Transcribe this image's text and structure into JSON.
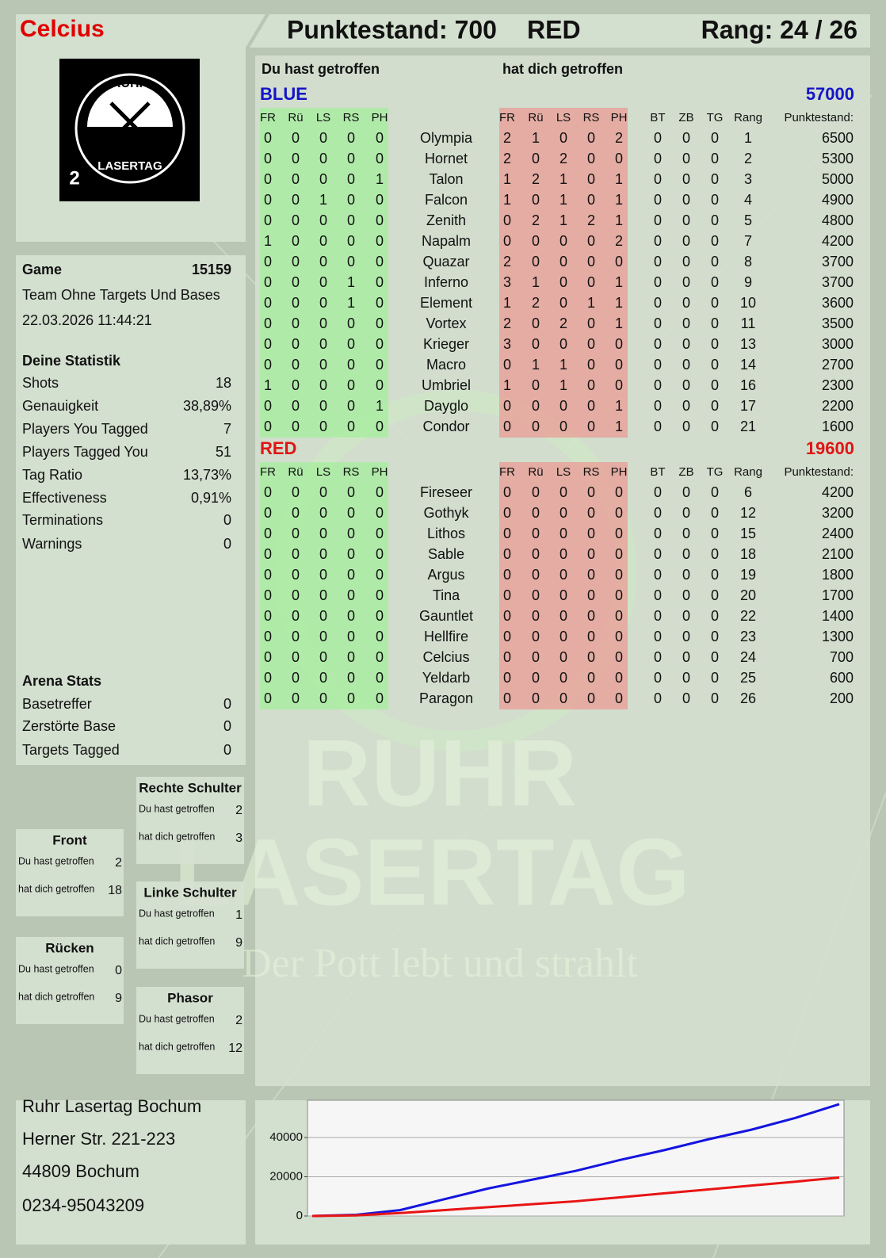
{
  "header": {
    "player": "Celcius",
    "score": "Punktestand: 700",
    "team": "RED",
    "rank": "Rang: 24 / 26"
  },
  "logo": {
    "top": "RUHR",
    "bottom": "LASERTAG",
    "badge": "2"
  },
  "game": {
    "label": "Game",
    "id": "15159",
    "mode": "Team Ohne Targets Und Bases",
    "datetime": "22.03.2026 11:44:21"
  },
  "stats": {
    "title": "Deine Statistik",
    "rows": [
      [
        "Shots",
        "18"
      ],
      [
        "Genauigkeit",
        "38,89%"
      ],
      [
        "Players You Tagged",
        "7"
      ],
      [
        "Players Tagged You",
        "51"
      ],
      [
        "Tag Ratio",
        "13,73%"
      ],
      [
        "Effectiveness",
        "0,91%"
      ],
      [
        "Terminations",
        "0"
      ],
      [
        "Warnings",
        "0"
      ]
    ]
  },
  "arena": {
    "title": "Arena Stats",
    "rows": [
      [
        "Basetreffer",
        "0"
      ],
      [
        "Zerstörte Base",
        "0"
      ],
      [
        "Targets Tagged",
        "0"
      ]
    ]
  },
  "zones": [
    {
      "name": "Rechte Schulter",
      "rows": [
        [
          "Du hast getroffen",
          "2"
        ],
        [
          "hat dich getroffen",
          "3"
        ]
      ]
    },
    {
      "name": "Front",
      "rows": [
        [
          "Du hast getroffen",
          "2"
        ],
        [
          "hat dich getroffen",
          "18"
        ]
      ]
    },
    {
      "name": "Linke Schulter",
      "rows": [
        [
          "Du hast getroffen",
          "1"
        ],
        [
          "hat dich getroffen",
          "9"
        ]
      ]
    },
    {
      "name": "Rücken",
      "rows": [
        [
          "Du hast getroffen",
          "0"
        ],
        [
          "hat dich getroffen",
          "9"
        ]
      ]
    },
    {
      "name": "Phasor",
      "rows": [
        [
          "Du hast getroffen",
          "2"
        ],
        [
          "hat dich getroffen",
          "12"
        ]
      ]
    }
  ],
  "address": [
    "Ruhr Lasertag Bochum",
    "Herner Str. 221-223",
    "44809 Bochum",
    "0234-95043209"
  ],
  "watermark": {
    "line1": "RUHR",
    "line2": "LASERTAG",
    "slogan": "Der Pott lebt und strahlt"
  },
  "table": {
    "hit_label": "Du hast getroffen",
    "got_label": "hat dich getroffen",
    "teams": [
      {
        "name": "BLUE",
        "color": "#1414c8",
        "score": "57000",
        "columns": [
          "FR",
          "Rü",
          "LS",
          "RS",
          "PH",
          "FR",
          "Rü",
          "LS",
          "RS",
          "PH",
          "BT",
          "ZB",
          "TG",
          "Rang",
          "Punktestand:"
        ],
        "rows": [
          [
            0,
            0,
            0,
            0,
            0,
            "Olympia",
            2,
            1,
            0,
            0,
            2,
            0,
            0,
            0,
            1,
            6500
          ],
          [
            0,
            0,
            0,
            0,
            0,
            "Hornet",
            2,
            0,
            2,
            0,
            0,
            0,
            0,
            0,
            2,
            5300
          ],
          [
            0,
            0,
            0,
            0,
            1,
            "Talon",
            1,
            2,
            1,
            0,
            1,
            0,
            0,
            0,
            3,
            5000
          ],
          [
            0,
            0,
            1,
            0,
            0,
            "Falcon",
            1,
            0,
            1,
            0,
            1,
            0,
            0,
            0,
            4,
            4900
          ],
          [
            0,
            0,
            0,
            0,
            0,
            "Zenith",
            0,
            2,
            1,
            2,
            1,
            0,
            0,
            0,
            5,
            4800
          ],
          [
            1,
            0,
            0,
            0,
            0,
            "Napalm",
            0,
            0,
            0,
            0,
            2,
            0,
            0,
            0,
            7,
            4200
          ],
          [
            0,
            0,
            0,
            0,
            0,
            "Quazar",
            2,
            0,
            0,
            0,
            0,
            0,
            0,
            0,
            8,
            3700
          ],
          [
            0,
            0,
            0,
            1,
            0,
            "Inferno",
            3,
            1,
            0,
            0,
            1,
            0,
            0,
            0,
            9,
            3700
          ],
          [
            0,
            0,
            0,
            1,
            0,
            "Element",
            1,
            2,
            0,
            1,
            1,
            0,
            0,
            0,
            10,
            3600
          ],
          [
            0,
            0,
            0,
            0,
            0,
            "Vortex",
            2,
            0,
            2,
            0,
            1,
            0,
            0,
            0,
            11,
            3500
          ],
          [
            0,
            0,
            0,
            0,
            0,
            "Krieger",
            3,
            0,
            0,
            0,
            0,
            0,
            0,
            0,
            13,
            3000
          ],
          [
            0,
            0,
            0,
            0,
            0,
            "Macro",
            0,
            1,
            1,
            0,
            0,
            0,
            0,
            0,
            14,
            2700
          ],
          [
            1,
            0,
            0,
            0,
            0,
            "Umbriel",
            1,
            0,
            1,
            0,
            0,
            0,
            0,
            0,
            16,
            2300
          ],
          [
            0,
            0,
            0,
            0,
            1,
            "Dayglo",
            0,
            0,
            0,
            0,
            1,
            0,
            0,
            0,
            17,
            2200
          ],
          [
            0,
            0,
            0,
            0,
            0,
            "Condor",
            0,
            0,
            0,
            0,
            1,
            0,
            0,
            0,
            21,
            1600
          ]
        ]
      },
      {
        "name": "RED",
        "color": "#e01414",
        "score": "19600",
        "columns": [
          "FR",
          "Rü",
          "LS",
          "RS",
          "PH",
          "FR",
          "Rü",
          "LS",
          "RS",
          "PH",
          "BT",
          "ZB",
          "TG",
          "Rang",
          "Punktestand:"
        ],
        "rows": [
          [
            0,
            0,
            0,
            0,
            0,
            "Fireseer",
            0,
            0,
            0,
            0,
            0,
            0,
            0,
            0,
            6,
            4200
          ],
          [
            0,
            0,
            0,
            0,
            0,
            "Gothyk",
            0,
            0,
            0,
            0,
            0,
            0,
            0,
            0,
            12,
            3200
          ],
          [
            0,
            0,
            0,
            0,
            0,
            "Lithos",
            0,
            0,
            0,
            0,
            0,
            0,
            0,
            0,
            15,
            2400
          ],
          [
            0,
            0,
            0,
            0,
            0,
            "Sable",
            0,
            0,
            0,
            0,
            0,
            0,
            0,
            0,
            18,
            2100
          ],
          [
            0,
            0,
            0,
            0,
            0,
            "Argus",
            0,
            0,
            0,
            0,
            0,
            0,
            0,
            0,
            19,
            1800
          ],
          [
            0,
            0,
            0,
            0,
            0,
            "Tina",
            0,
            0,
            0,
            0,
            0,
            0,
            0,
            0,
            20,
            1700
          ],
          [
            0,
            0,
            0,
            0,
            0,
            "Gauntlet",
            0,
            0,
            0,
            0,
            0,
            0,
            0,
            0,
            22,
            1400
          ],
          [
            0,
            0,
            0,
            0,
            0,
            "Hellfire",
            0,
            0,
            0,
            0,
            0,
            0,
            0,
            0,
            23,
            1300
          ],
          [
            0,
            0,
            0,
            0,
            0,
            "Celcius",
            0,
            0,
            0,
            0,
            0,
            0,
            0,
            0,
            24,
            700
          ],
          [
            0,
            0,
            0,
            0,
            0,
            "Yeldarb",
            0,
            0,
            0,
            0,
            0,
            0,
            0,
            0,
            25,
            600
          ],
          [
            0,
            0,
            0,
            0,
            0,
            "Paragon",
            0,
            0,
            0,
            0,
            0,
            0,
            0,
            0,
            26,
            200
          ]
        ]
      }
    ]
  },
  "chart_data": {
    "type": "line",
    "ylim": [
      0,
      59000
    ],
    "yticks": [
      0,
      20000,
      40000
    ],
    "grid": true,
    "series": [
      {
        "color": "#1414e0",
        "values": [
          0,
          600,
          3000,
          8500,
          14000,
          18500,
          23000,
          28500,
          33500,
          39000,
          44000,
          50000,
          57000
        ]
      },
      {
        "color": "#e81414",
        "values": [
          0,
          300,
          1500,
          3000,
          4500,
          6000,
          7500,
          9500,
          11500,
          13500,
          15500,
          17500,
          19600
        ]
      }
    ]
  }
}
